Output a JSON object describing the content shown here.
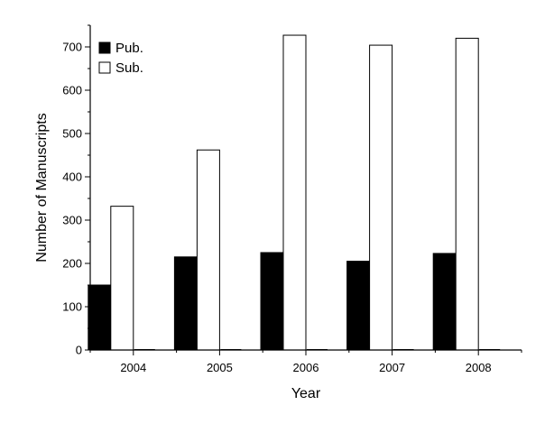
{
  "chart_data": {
    "type": "bar",
    "title": "",
    "xlabel": "Year",
    "ylabel": "Number of Manuscripts",
    "categories": [
      "2004",
      "2005",
      "2006",
      "2007",
      "2008"
    ],
    "series": [
      {
        "name": "Pub.",
        "values": [
          150,
          215,
          225,
          205,
          223
        ],
        "color": "#000000"
      },
      {
        "name": "Sub.",
        "values": [
          332,
          462,
          727,
          704,
          720
        ],
        "color": "#ffffff"
      }
    ],
    "ylim": [
      0,
      750
    ],
    "yticks": [
      0,
      100,
      200,
      300,
      400,
      500,
      600,
      700
    ],
    "grid": false,
    "legend": "top-left"
  }
}
